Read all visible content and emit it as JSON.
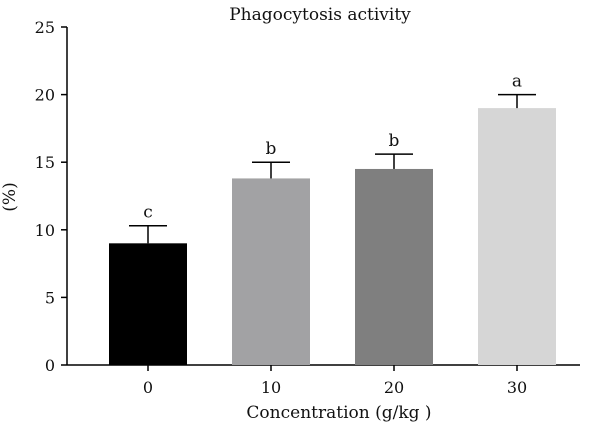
{
  "chart_data": {
    "type": "bar",
    "title": "Phagocytosis activity",
    "xlabel": "Concentration (g/kg )",
    "ylabel": "(%)",
    "categories": [
      "0",
      "10",
      "20",
      "30"
    ],
    "values": [
      9.0,
      13.8,
      14.5,
      19.0
    ],
    "errors": [
      1.3,
      1.2,
      1.1,
      1.0
    ],
    "significance": [
      "c",
      "b",
      "b",
      "a"
    ],
    "colors": [
      "#000000",
      "#a2a2a4",
      "#7f7f7f",
      "#d6d6d6"
    ],
    "ylim": [
      0,
      25
    ],
    "yticks": [
      0,
      5,
      10,
      15,
      20,
      25
    ],
    "grid": false,
    "legend": "none"
  }
}
